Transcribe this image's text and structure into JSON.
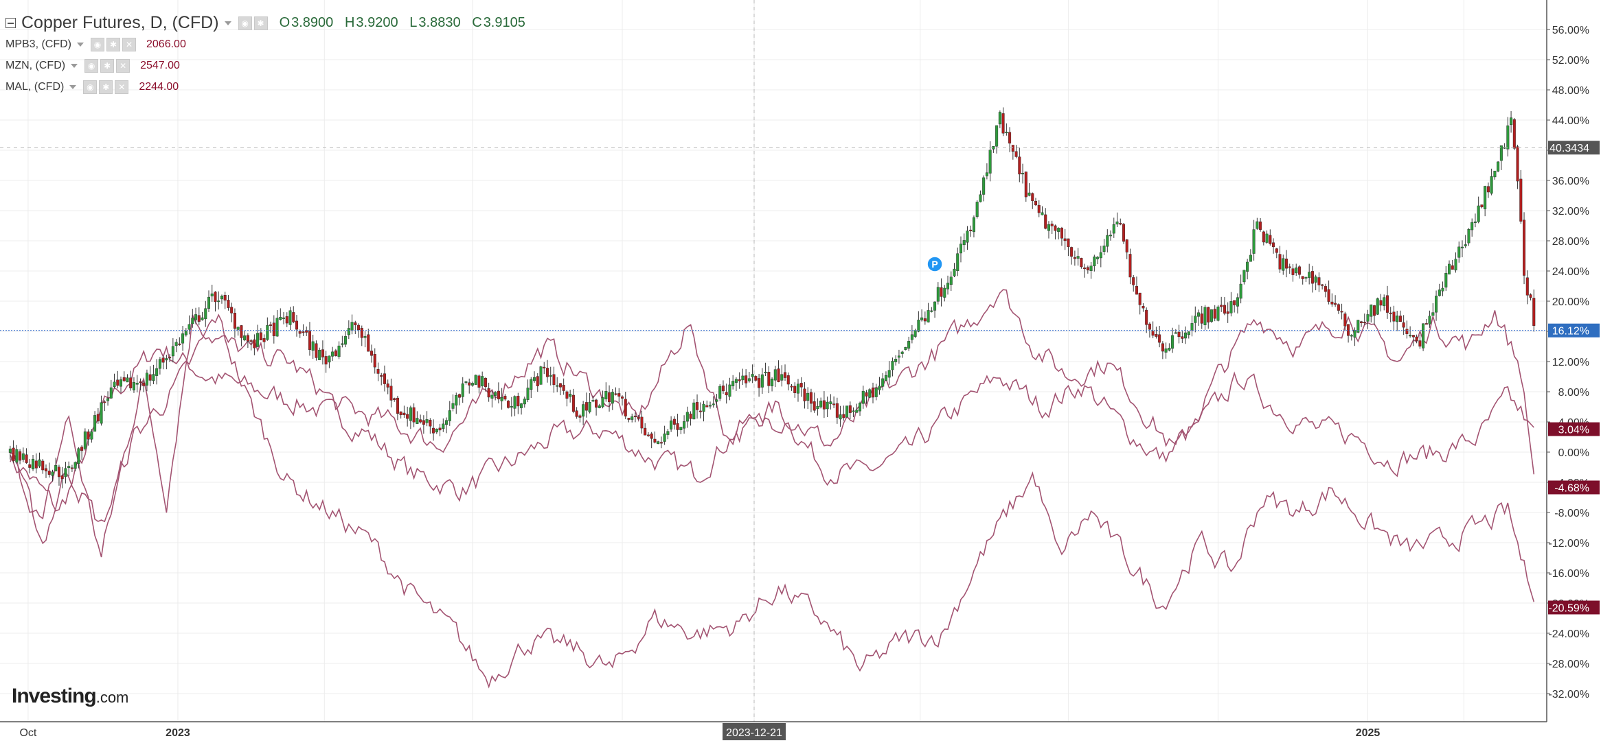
{
  "header": {
    "title": "Copper Futures, D, (CFD)",
    "ohlc": [
      {
        "key": "O",
        "value": "3.8900"
      },
      {
        "key": "H",
        "value": "3.9200"
      },
      {
        "key": "L",
        "value": "3.8830"
      },
      {
        "key": "C",
        "value": "3.9105"
      }
    ],
    "overlays": [
      {
        "name": "MPB3, (CFD)",
        "value": "2066.00"
      },
      {
        "name": "MZN, (CFD)",
        "value": "2547.00"
      },
      {
        "name": "MAL, (CFD)",
        "value": "2244.00"
      }
    ]
  },
  "watermark": {
    "brand": "Investing",
    "suffix": ".com"
  },
  "colors": {
    "up": "#2e9a3c",
    "down": "#b21f1f",
    "line": "#a35472",
    "badge_dark": "#7d0f2a",
    "current_line": "#4a7bd0",
    "badge_blue": "#2f6ec0",
    "badge_gray": "#555555",
    "grid": "#ececec"
  },
  "chart_data": {
    "type": "line",
    "title": "Copper Futures, D, (CFD)",
    "x_axis": {
      "ticks": [
        "Oct",
        "2023",
        "2023-12-21",
        "2025"
      ],
      "crosshair_label": "2023-12-21"
    },
    "y_axis": {
      "unit": "%",
      "ylim": [
        -34,
        58
      ],
      "tick_labels": [
        "56.00%",
        "52.00%",
        "48.00%",
        "44.00%",
        "40.00%",
        "36.00%",
        "32.00%",
        "28.00%",
        "24.00%",
        "20.00%",
        "16.00%",
        "12.00%",
        "8.00%",
        "4.00%",
        "0.00%",
        "-4.00%",
        "-8.00%",
        "-12.00%",
        "-16.00%",
        "-20.00%",
        "-24.00%",
        "-28.00%",
        "-32.00%"
      ],
      "crosshair_value": "40.3434"
    },
    "grid": true,
    "marker": {
      "label": "P",
      "date": "2024-04-10",
      "value": 24.0
    },
    "series": [
      {
        "name": "Copper Futures, D, (CFD)",
        "style": "candlestick",
        "last_label": "16.12%",
        "points": [
          {
            "date": "2022-09-20",
            "value": 0
          },
          {
            "date": "2022-10-25",
            "value": -3
          },
          {
            "date": "2022-11-20",
            "value": 8
          },
          {
            "date": "2022-12-15",
            "value": 10
          },
          {
            "date": "2023-01-10",
            "value": 17
          },
          {
            "date": "2023-01-25",
            "value": 21
          },
          {
            "date": "2023-02-15",
            "value": 14
          },
          {
            "date": "2023-03-10",
            "value": 18
          },
          {
            "date": "2023-04-01",
            "value": 12
          },
          {
            "date": "2023-04-20",
            "value": 17
          },
          {
            "date": "2023-05-15",
            "value": 6
          },
          {
            "date": "2023-06-10",
            "value": 3
          },
          {
            "date": "2023-07-01",
            "value": 10
          },
          {
            "date": "2023-07-25",
            "value": 6
          },
          {
            "date": "2023-08-15",
            "value": 11
          },
          {
            "date": "2023-09-05",
            "value": 5
          },
          {
            "date": "2023-09-25",
            "value": 8
          },
          {
            "date": "2023-10-20",
            "value": 1
          },
          {
            "date": "2023-11-15",
            "value": 6
          },
          {
            "date": "2023-12-10",
            "value": 9
          },
          {
            "date": "2024-01-05",
            "value": 10
          },
          {
            "date": "2024-01-31",
            "value": 6
          },
          {
            "date": "2024-02-15",
            "value": 5
          },
          {
            "date": "2024-03-08",
            "value": 9
          },
          {
            "date": "2024-03-25",
            "value": 15
          },
          {
            "date": "2024-04-15",
            "value": 22
          },
          {
            "date": "2024-05-03",
            "value": 30
          },
          {
            "date": "2024-05-20",
            "value": 44
          },
          {
            "date": "2024-06-10",
            "value": 32
          },
          {
            "date": "2024-06-28",
            "value": 28
          },
          {
            "date": "2024-07-15",
            "value": 24
          },
          {
            "date": "2024-07-31",
            "value": 31
          },
          {
            "date": "2024-08-12",
            "value": 20
          },
          {
            "date": "2024-08-28",
            "value": 14
          },
          {
            "date": "2024-09-20",
            "value": 18
          },
          {
            "date": "2024-10-10",
            "value": 19
          },
          {
            "date": "2024-10-25",
            "value": 30
          },
          {
            "date": "2024-11-12",
            "value": 24
          },
          {
            "date": "2024-12-01",
            "value": 23
          },
          {
            "date": "2024-12-20",
            "value": 16
          },
          {
            "date": "2025-01-10",
            "value": 20
          },
          {
            "date": "2025-01-31",
            "value": 14
          },
          {
            "date": "2025-02-20",
            "value": 24
          },
          {
            "date": "2025-03-10",
            "value": 32
          },
          {
            "date": "2025-03-31",
            "value": 44
          },
          {
            "date": "2025-04-07",
            "value": 24
          },
          {
            "date": "2025-04-14",
            "value": 16.12
          }
        ]
      },
      {
        "name": "MPB3, (CFD)",
        "style": "line",
        "last_label": "3.04%",
        "points": [
          {
            "date": "2022-09-20",
            "value": 0
          },
          {
            "date": "2022-10-20",
            "value": -8
          },
          {
            "date": "2022-11-20",
            "value": 7
          },
          {
            "date": "2022-12-20",
            "value": 14
          },
          {
            "date": "2023-01-20",
            "value": 10
          },
          {
            "date": "2023-02-20",
            "value": 8
          },
          {
            "date": "2023-03-25",
            "value": 6
          },
          {
            "date": "2023-04-25",
            "value": 3
          },
          {
            "date": "2023-05-25",
            "value": -3
          },
          {
            "date": "2023-06-25",
            "value": -5
          },
          {
            "date": "2023-07-20",
            "value": -2
          },
          {
            "date": "2023-08-20",
            "value": 2
          },
          {
            "date": "2023-09-20",
            "value": 3
          },
          {
            "date": "2023-10-20",
            "value": -1
          },
          {
            "date": "2023-11-15",
            "value": -3
          },
          {
            "date": "2023-12-10",
            "value": 3
          },
          {
            "date": "2024-01-05",
            "value": 6
          },
          {
            "date": "2024-02-01",
            "value": -2
          },
          {
            "date": "2024-02-25",
            "value": -3
          },
          {
            "date": "2024-03-25",
            "value": 0
          },
          {
            "date": "2024-04-20",
            "value": 5
          },
          {
            "date": "2024-05-20",
            "value": 10
          },
          {
            "date": "2024-06-15",
            "value": 6
          },
          {
            "date": "2024-07-10",
            "value": 9
          },
          {
            "date": "2024-08-05",
            "value": 3
          },
          {
            "date": "2024-08-28",
            "value": -1
          },
          {
            "date": "2024-09-25",
            "value": 5
          },
          {
            "date": "2024-10-15",
            "value": 10
          },
          {
            "date": "2024-11-05",
            "value": 6
          },
          {
            "date": "2024-11-30",
            "value": 3
          },
          {
            "date": "2024-12-25",
            "value": 2
          },
          {
            "date": "2025-01-15",
            "value": -1
          },
          {
            "date": "2025-02-15",
            "value": 0
          },
          {
            "date": "2025-03-10",
            "value": 2
          },
          {
            "date": "2025-03-28",
            "value": 7
          },
          {
            "date": "2025-04-14",
            "value": 3.04
          }
        ]
      },
      {
        "name": "MZN, (CFD)",
        "style": "line",
        "last_label": "-4.68%",
        "points": [
          {
            "date": "2022-09-20",
            "value": 0
          },
          {
            "date": "2022-10-10",
            "value": -10
          },
          {
            "date": "2022-10-25",
            "value": 5
          },
          {
            "date": "2022-11-15",
            "value": -14
          },
          {
            "date": "2022-12-10",
            "value": 10
          },
          {
            "date": "2022-12-25",
            "value": -6
          },
          {
            "date": "2023-01-10",
            "value": 18
          },
          {
            "date": "2023-02-01",
            "value": 14
          },
          {
            "date": "2023-03-10",
            "value": 12
          },
          {
            "date": "2023-04-10",
            "value": 6
          },
          {
            "date": "2023-05-10",
            "value": 4
          },
          {
            "date": "2023-06-10",
            "value": 1
          },
          {
            "date": "2023-07-15",
            "value": 8
          },
          {
            "date": "2023-08-15",
            "value": 14
          },
          {
            "date": "2023-09-10",
            "value": 9
          },
          {
            "date": "2023-10-10",
            "value": 4
          },
          {
            "date": "2023-11-10",
            "value": 17
          },
          {
            "date": "2023-12-05",
            "value": 2
          },
          {
            "date": "2024-01-10",
            "value": 5
          },
          {
            "date": "2024-02-05",
            "value": 1
          },
          {
            "date": "2024-03-10",
            "value": 8
          },
          {
            "date": "2024-04-10",
            "value": 13
          },
          {
            "date": "2024-05-05",
            "value": 18
          },
          {
            "date": "2024-05-20",
            "value": 22
          },
          {
            "date": "2024-06-10",
            "value": 14
          },
          {
            "date": "2024-07-01",
            "value": 10
          },
          {
            "date": "2024-07-25",
            "value": 12
          },
          {
            "date": "2024-08-15",
            "value": 6
          },
          {
            "date": "2024-09-05",
            "value": 0
          },
          {
            "date": "2024-10-01",
            "value": 10
          },
          {
            "date": "2024-10-25",
            "value": 18
          },
          {
            "date": "2024-11-20",
            "value": 14
          },
          {
            "date": "2024-12-20",
            "value": 18
          },
          {
            "date": "2025-01-20",
            "value": 12
          },
          {
            "date": "2025-02-10",
            "value": 17
          },
          {
            "date": "2025-03-05",
            "value": 14
          },
          {
            "date": "2025-03-20",
            "value": 19
          },
          {
            "date": "2025-04-05",
            "value": 11
          },
          {
            "date": "2025-04-14",
            "value": -4.68
          }
        ]
      },
      {
        "name": "MAL, (CFD)",
        "style": "line",
        "last_label": "-20.59%",
        "points": [
          {
            "date": "2022-09-20",
            "value": 0
          },
          {
            "date": "2022-10-10",
            "value": -12
          },
          {
            "date": "2022-10-25",
            "value": -2
          },
          {
            "date": "2022-11-15",
            "value": -10
          },
          {
            "date": "2022-12-05",
            "value": 2
          },
          {
            "date": "2023-01-05",
            "value": 10
          },
          {
            "date": "2023-01-25",
            "value": 18
          },
          {
            "date": "2023-02-15",
            "value": 6
          },
          {
            "date": "2023-03-10",
            "value": -4
          },
          {
            "date": "2023-04-05",
            "value": -8
          },
          {
            "date": "2023-04-30",
            "value": -12
          },
          {
            "date": "2023-05-25",
            "value": -19
          },
          {
            "date": "2023-06-20",
            "value": -24
          },
          {
            "date": "2023-07-10",
            "value": -30
          },
          {
            "date": "2023-08-05",
            "value": -25
          },
          {
            "date": "2023-09-01",
            "value": -26
          },
          {
            "date": "2023-09-25",
            "value": -29
          },
          {
            "date": "2023-10-20",
            "value": -22
          },
          {
            "date": "2023-11-15",
            "value": -24
          },
          {
            "date": "2023-12-10",
            "value": -23
          },
          {
            "date": "2024-01-05",
            "value": -18
          },
          {
            "date": "2024-01-31",
            "value": -22
          },
          {
            "date": "2024-02-25",
            "value": -29
          },
          {
            "date": "2024-03-20",
            "value": -25
          },
          {
            "date": "2024-04-15",
            "value": -24
          },
          {
            "date": "2024-05-05",
            "value": -15
          },
          {
            "date": "2024-05-25",
            "value": -8
          },
          {
            "date": "2024-06-10",
            "value": -3
          },
          {
            "date": "2024-06-25",
            "value": -14
          },
          {
            "date": "2024-07-15",
            "value": -8
          },
          {
            "date": "2024-08-05",
            "value": -14
          },
          {
            "date": "2024-08-28",
            "value": -20
          },
          {
            "date": "2024-09-20",
            "value": -12
          },
          {
            "date": "2024-10-10",
            "value": -16
          },
          {
            "date": "2024-10-28",
            "value": -6
          },
          {
            "date": "2024-11-20",
            "value": -8
          },
          {
            "date": "2024-12-10",
            "value": -5
          },
          {
            "date": "2025-01-05",
            "value": -10
          },
          {
            "date": "2025-01-25",
            "value": -13
          },
          {
            "date": "2025-02-15",
            "value": -12
          },
          {
            "date": "2025-03-10",
            "value": -10
          },
          {
            "date": "2025-03-28",
            "value": -8
          },
          {
            "date": "2025-04-14",
            "value": -20.59
          }
        ]
      }
    ]
  }
}
